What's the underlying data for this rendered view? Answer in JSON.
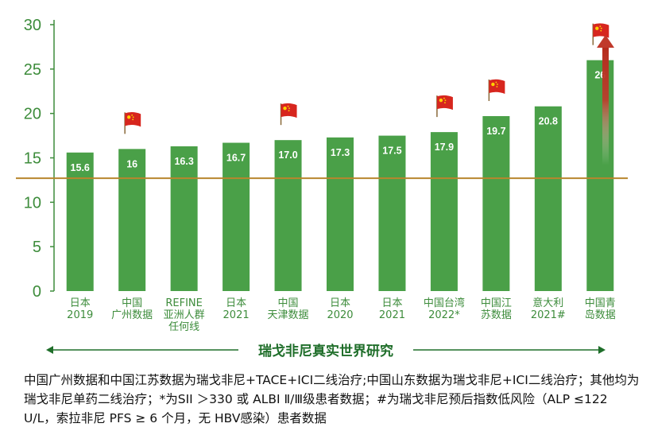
{
  "chart_data": {
    "type": "bar",
    "categories": [
      "日本\n2019",
      "中国\n广州数据",
      "REFINE\n亚洲人群\n任何线",
      "日本\n2021",
      "中国\n天津数据",
      "日本\n2020",
      "日本\n2021",
      "中国台湾\n2022*",
      "中国江\n苏数据",
      "意大利\n2021#",
      "中国青\n岛数据"
    ],
    "values": [
      15.6,
      16,
      16.3,
      16.7,
      17.0,
      17.3,
      17.5,
      17.9,
      19.7,
      20.8,
      26
    ],
    "value_labels": [
      "15.6",
      "16",
      "16.3",
      "16.7",
      "17.0",
      "17.3",
      "17.5",
      "17.9",
      "19.7",
      "20.8",
      "26"
    ],
    "china_flag": [
      false,
      true,
      false,
      false,
      true,
      false,
      false,
      true,
      true,
      false,
      true
    ],
    "yticks": [
      0,
      5,
      10,
      15,
      20,
      25,
      30
    ],
    "ylim": [
      0,
      30
    ],
    "reference_line": 12.7,
    "xlabel": "瑞戈非尼真实世界研究",
    "bar_color": "#4aa048",
    "reference_color": "#b8862e",
    "axis_color": "#3d8c3b",
    "arrow_color": "#c0392b",
    "xlabel_color": "#1f6e2a"
  },
  "footnote": "中国广州数据和中国江苏数据为瑞戈非尼+TACE+ICI二线治疗;中国山东数据为瑞戈非尼+ICI二线治疗；其他均为瑞戈非尼单药二线治疗；*为SII ＞330 或 ALBI Ⅱ/Ⅲ级患者数据；#为瑞戈非尼预后指数低风险（ALP ≤122 U/L，索拉非尼 PFS ≥ 6 个月，无 HBV感染）患者数据"
}
